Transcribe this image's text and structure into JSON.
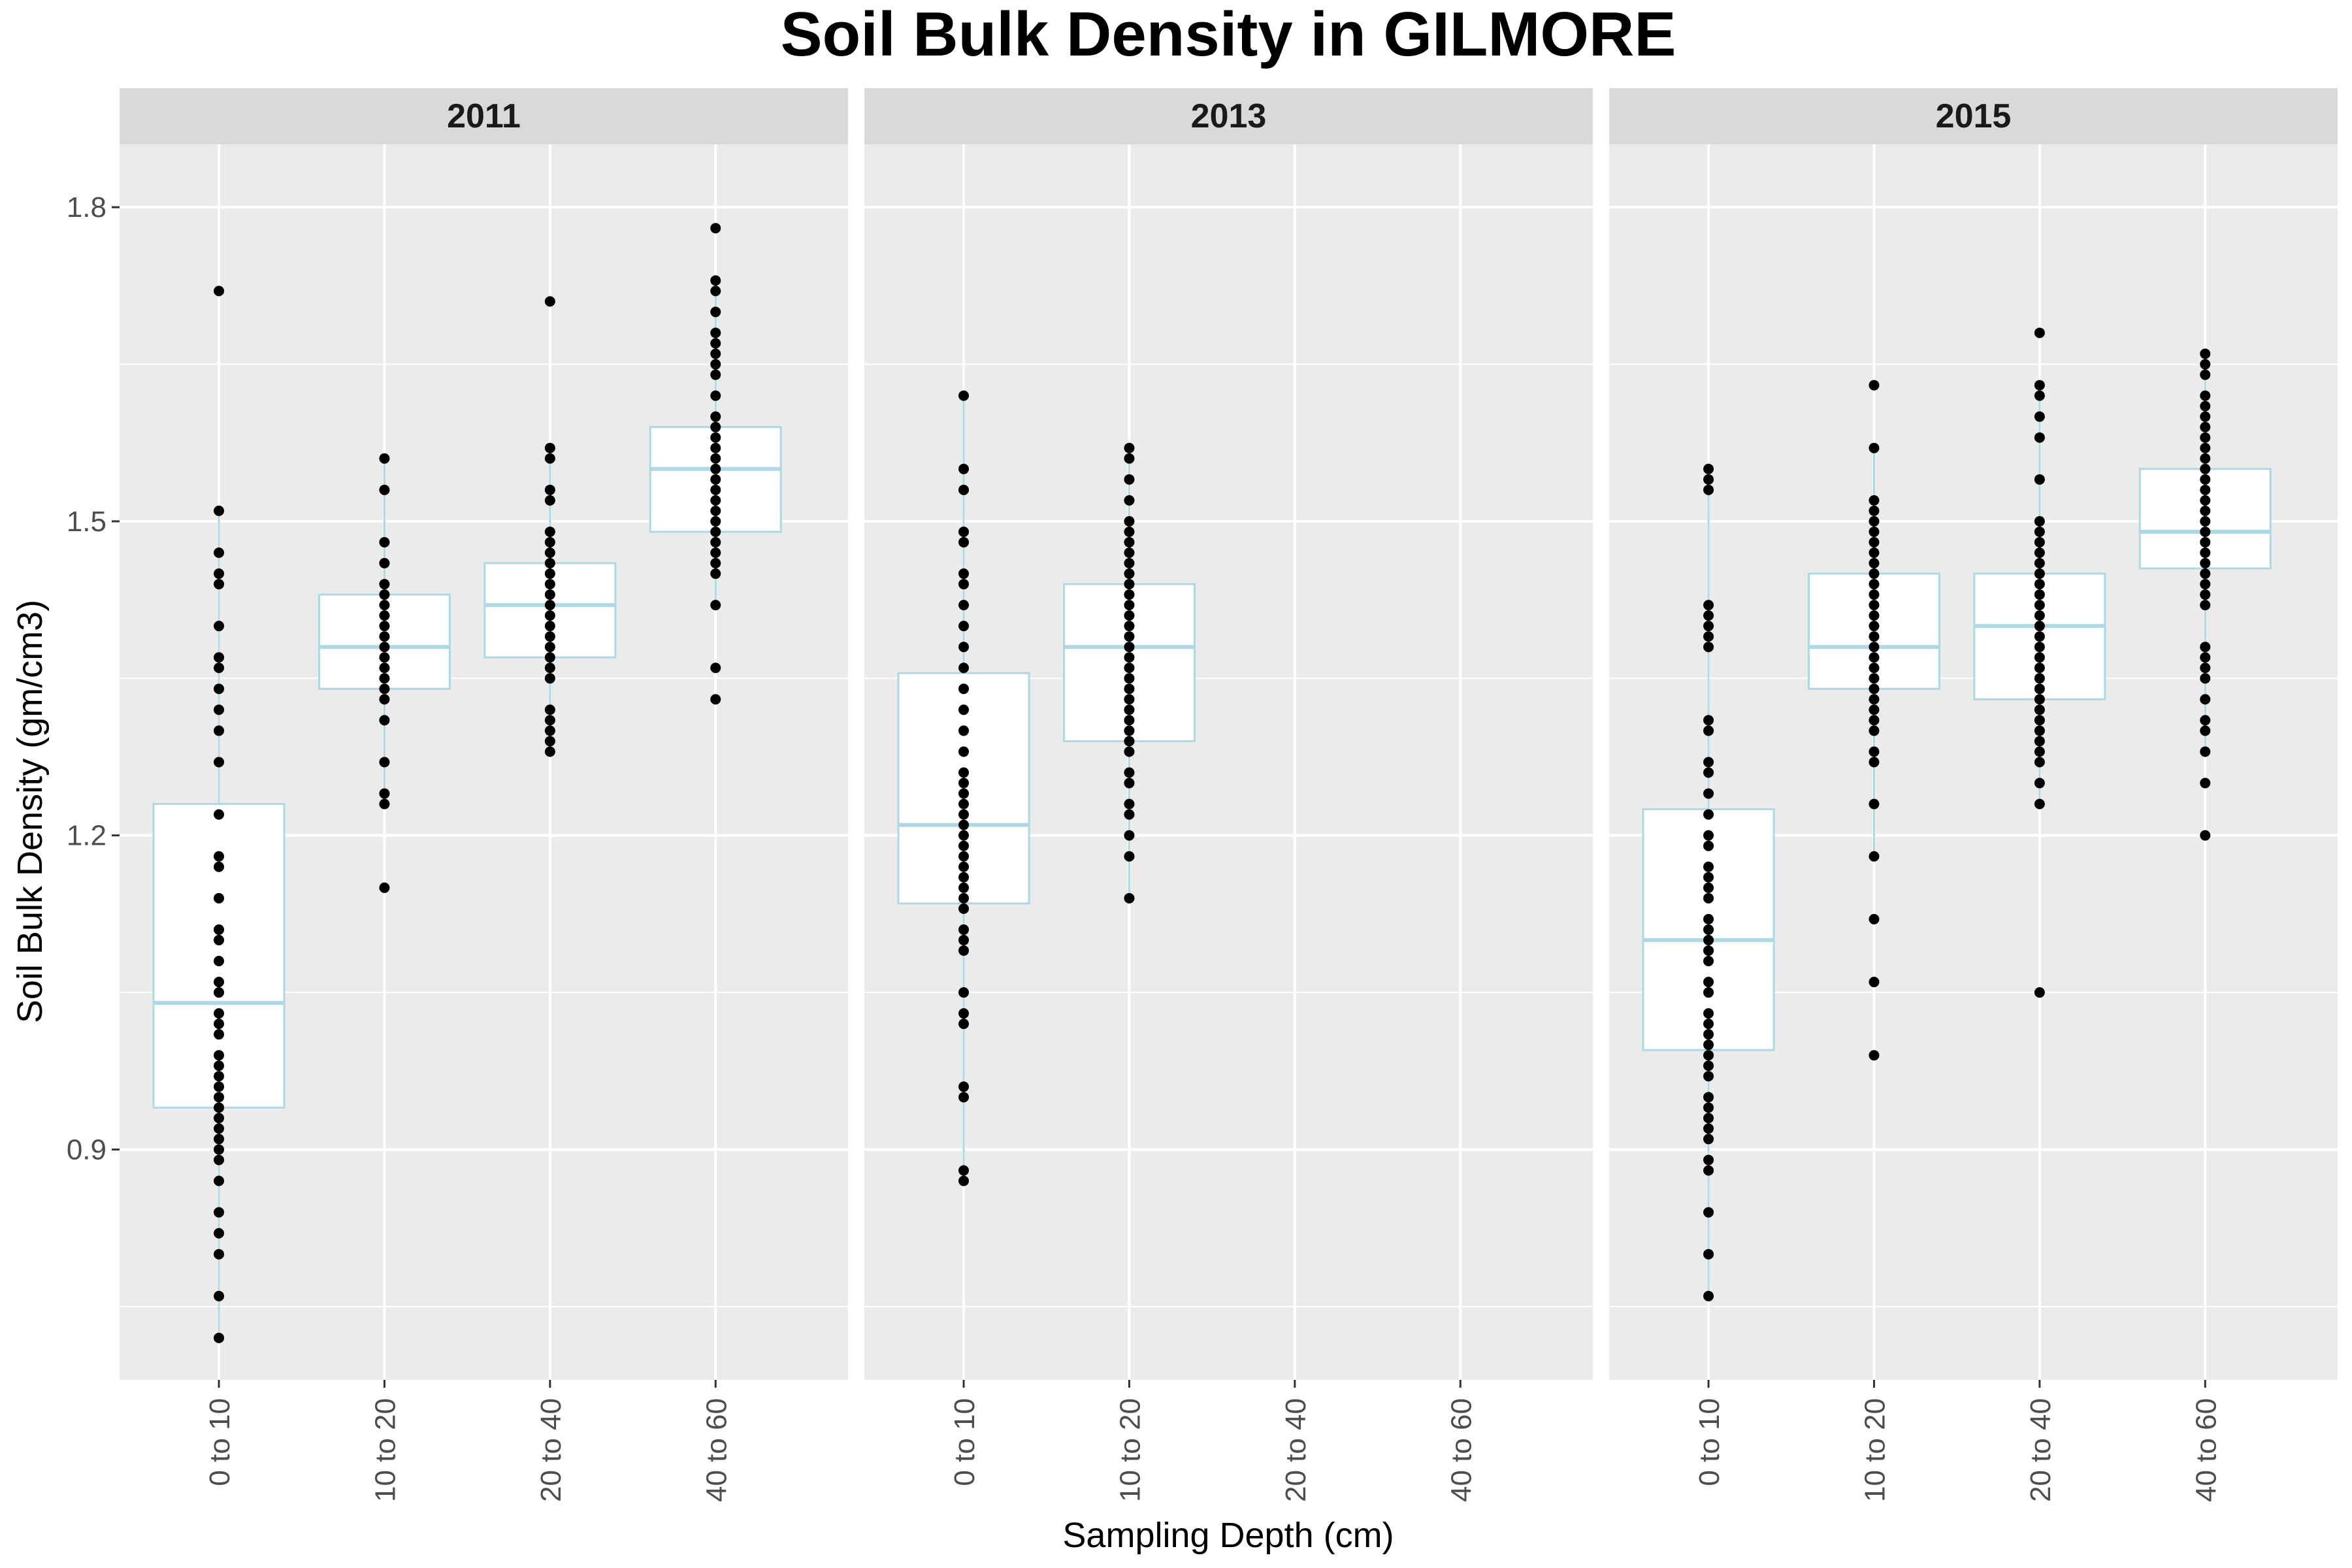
{
  "chart_data": {
    "type": "boxplot",
    "title": "Soil Bulk Density in GILMORE",
    "xlabel": "Sampling Depth (cm)",
    "ylabel": "Soil Bulk Density (gm/cm3)",
    "categories": [
      "0 to 10",
      "10 to 20",
      "20 to 40",
      "40 to 60"
    ],
    "ylim": [
      0.68,
      1.86
    ],
    "yticks": [
      0.9,
      1.2,
      1.5,
      1.8
    ],
    "ytick_labels": [
      "0.9",
      "1.2",
      "1.5",
      "1.8"
    ],
    "grid": true,
    "facets": [
      {
        "label": "2011",
        "groups": [
          {
            "category": "0 to 10",
            "q1": 0.94,
            "median": 1.04,
            "q3": 1.23,
            "whisker_low": 0.72,
            "whisker_high": 1.51,
            "points": [
              0.72,
              0.76,
              0.8,
              0.82,
              0.84,
              0.87,
              0.89,
              0.9,
              0.91,
              0.92,
              0.93,
              0.94,
              0.95,
              0.96,
              0.97,
              0.98,
              0.99,
              1.01,
              1.02,
              1.03,
              1.05,
              1.06,
              1.08,
              1.1,
              1.11,
              1.14,
              1.17,
              1.18,
              1.22,
              1.27,
              1.3,
              1.32,
              1.34,
              1.36,
              1.37,
              1.4,
              1.44,
              1.45,
              1.47,
              1.51,
              1.72
            ]
          },
          {
            "category": "10 to 20",
            "q1": 1.34,
            "median": 1.38,
            "q3": 1.43,
            "whisker_low": 1.23,
            "whisker_high": 1.56,
            "points": [
              1.15,
              1.23,
              1.24,
              1.27,
              1.31,
              1.33,
              1.34,
              1.35,
              1.36,
              1.37,
              1.38,
              1.39,
              1.4,
              1.41,
              1.42,
              1.43,
              1.44,
              1.46,
              1.48,
              1.53,
              1.56
            ]
          },
          {
            "category": "20 to 40",
            "q1": 1.37,
            "median": 1.42,
            "q3": 1.46,
            "whisker_low": 1.28,
            "whisker_high": 1.57,
            "points": [
              1.28,
              1.29,
              1.3,
              1.31,
              1.32,
              1.35,
              1.36,
              1.37,
              1.38,
              1.39,
              1.4,
              1.41,
              1.42,
              1.43,
              1.44,
              1.45,
              1.46,
              1.47,
              1.48,
              1.49,
              1.52,
              1.53,
              1.56,
              1.57,
              1.71
            ]
          },
          {
            "category": "40 to 60",
            "q1": 1.49,
            "median": 1.55,
            "q3": 1.59,
            "whisker_low": 1.42,
            "whisker_high": 1.73,
            "points": [
              1.33,
              1.36,
              1.42,
              1.45,
              1.46,
              1.47,
              1.48,
              1.49,
              1.5,
              1.51,
              1.52,
              1.53,
              1.54,
              1.55,
              1.56,
              1.57,
              1.58,
              1.59,
              1.6,
              1.62,
              1.64,
              1.65,
              1.66,
              1.67,
              1.68,
              1.7,
              1.72,
              1.73,
              1.78
            ]
          }
        ]
      },
      {
        "label": "2013",
        "groups": [
          {
            "category": "0 to 10",
            "q1": 1.135,
            "median": 1.21,
            "q3": 1.355,
            "whisker_low": 0.87,
            "whisker_high": 1.62,
            "points": [
              0.87,
              0.88,
              0.95,
              0.96,
              1.02,
              1.03,
              1.05,
              1.09,
              1.1,
              1.11,
              1.13,
              1.14,
              1.15,
              1.16,
              1.17,
              1.18,
              1.19,
              1.2,
              1.21,
              1.22,
              1.23,
              1.24,
              1.25,
              1.26,
              1.28,
              1.3,
              1.32,
              1.34,
              1.36,
              1.38,
              1.4,
              1.42,
              1.44,
              1.45,
              1.48,
              1.49,
              1.53,
              1.55,
              1.62
            ]
          },
          {
            "category": "10 to 20",
            "q1": 1.29,
            "median": 1.38,
            "q3": 1.44,
            "whisker_low": 1.14,
            "whisker_high": 1.57,
            "points": [
              1.14,
              1.18,
              1.2,
              1.22,
              1.23,
              1.25,
              1.26,
              1.28,
              1.29,
              1.3,
              1.31,
              1.32,
              1.33,
              1.34,
              1.35,
              1.36,
              1.37,
              1.38,
              1.39,
              1.4,
              1.41,
              1.42,
              1.43,
              1.44,
              1.45,
              1.46,
              1.47,
              1.48,
              1.49,
              1.5,
              1.52,
              1.54,
              1.56,
              1.57
            ]
          },
          {
            "category": "20 to 40",
            "points": []
          },
          {
            "category": "40 to 60",
            "points": []
          }
        ]
      },
      {
        "label": "2015",
        "groups": [
          {
            "category": "0 to 10",
            "q1": 0.995,
            "median": 1.1,
            "q3": 1.225,
            "whisker_low": 0.76,
            "whisker_high": 1.55,
            "points": [
              0.76,
              0.8,
              0.84,
              0.88,
              0.89,
              0.91,
              0.92,
              0.93,
              0.94,
              0.95,
              0.97,
              0.98,
              0.99,
              1.0,
              1.01,
              1.02,
              1.03,
              1.05,
              1.06,
              1.08,
              1.09,
              1.1,
              1.11,
              1.12,
              1.14,
              1.15,
              1.16,
              1.17,
              1.19,
              1.2,
              1.22,
              1.24,
              1.26,
              1.27,
              1.3,
              1.31,
              1.38,
              1.39,
              1.4,
              1.41,
              1.42,
              1.53,
              1.54,
              1.55
            ]
          },
          {
            "category": "10 to 20",
            "q1": 1.34,
            "median": 1.38,
            "q3": 1.45,
            "whisker_low": 1.18,
            "whisker_high": 1.57,
            "points": [
              0.99,
              1.06,
              1.12,
              1.18,
              1.23,
              1.27,
              1.28,
              1.3,
              1.31,
              1.32,
              1.33,
              1.34,
              1.35,
              1.36,
              1.37,
              1.38,
              1.39,
              1.4,
              1.41,
              1.42,
              1.43,
              1.44,
              1.45,
              1.46,
              1.47,
              1.48,
              1.49,
              1.5,
              1.51,
              1.52,
              1.57,
              1.63
            ]
          },
          {
            "category": "20 to 40",
            "q1": 1.33,
            "median": 1.4,
            "q3": 1.45,
            "whisker_low": 1.23,
            "whisker_high": 1.63,
            "points": [
              1.05,
              1.23,
              1.25,
              1.27,
              1.28,
              1.29,
              1.3,
              1.31,
              1.32,
              1.33,
              1.34,
              1.35,
              1.36,
              1.37,
              1.38,
              1.39,
              1.4,
              1.41,
              1.42,
              1.43,
              1.44,
              1.45,
              1.46,
              1.47,
              1.48,
              1.49,
              1.5,
              1.54,
              1.58,
              1.6,
              1.62,
              1.63,
              1.68
            ]
          },
          {
            "category": "40 to 60",
            "q1": 1.455,
            "median": 1.49,
            "q3": 1.55,
            "whisker_low": 1.28,
            "whisker_high": 1.66,
            "points": [
              1.2,
              1.25,
              1.28,
              1.3,
              1.31,
              1.33,
              1.35,
              1.36,
              1.37,
              1.38,
              1.42,
              1.43,
              1.44,
              1.45,
              1.46,
              1.47,
              1.48,
              1.49,
              1.5,
              1.51,
              1.52,
              1.53,
              1.54,
              1.55,
              1.56,
              1.57,
              1.58,
              1.59,
              1.6,
              1.61,
              1.62,
              1.64,
              1.65,
              1.66
            ]
          }
        ]
      }
    ]
  },
  "colors": {
    "panel_background": "#ebebeb",
    "strip_background": "#d9d9d9",
    "gridline": "#ffffff",
    "box_outline": "#add8e6",
    "box_fill": "#ffffff",
    "point": "#000000",
    "text": "#000000",
    "tick_text": "#4d4d4d"
  }
}
